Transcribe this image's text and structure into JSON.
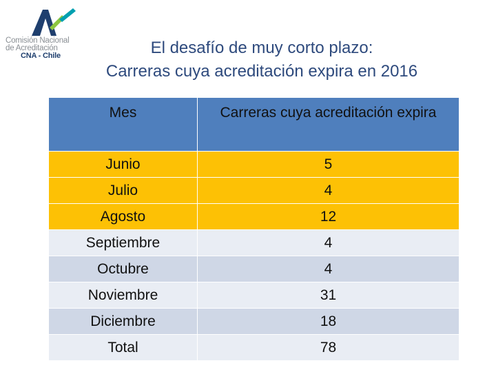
{
  "logo": {
    "line1": "Comisión Nacional",
    "line2": "de Acreditación",
    "line3": "CNA - Chile"
  },
  "title": {
    "line1": "El desafío de muy corto plazo:",
    "line2": "Carreras cuya acreditación expira en 2016"
  },
  "table": {
    "headers": [
      "Mes",
      "Carreras cuya acreditación expira"
    ],
    "rows": [
      {
        "mes": "Junio",
        "valor": "5"
      },
      {
        "mes": "Julio",
        "valor": "4"
      },
      {
        "mes": "Agosto",
        "valor": "12"
      },
      {
        "mes": "Septiembre",
        "valor": "4"
      },
      {
        "mes": "Octubre",
        "valor": "4"
      },
      {
        "mes": "Noviembre",
        "valor": "31"
      },
      {
        "mes": "Diciembre",
        "valor": "18"
      },
      {
        "mes": "Total",
        "valor": "78"
      }
    ]
  },
  "colors": {
    "header": "#4f7fbd",
    "highlight": "#fdc105",
    "row_light": "#e9edf4",
    "row_dark": "#cfd7e6",
    "title": "#2e4a7d"
  }
}
